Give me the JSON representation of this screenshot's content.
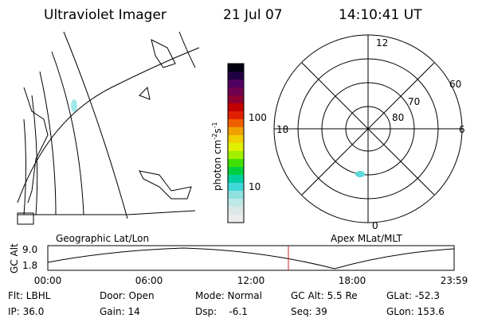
{
  "header": {
    "title": "Ultraviolet Imager",
    "date": "21 Jul 07",
    "time": "14:10:41 UT"
  },
  "map": {
    "label": "Geographic Lat/Lon"
  },
  "colorbar": {
    "unit": [
      "photon cm",
      "-2",
      "s",
      "-1"
    ],
    "ticks": [
      "100",
      "10"
    ]
  },
  "polar": {
    "label": "Apex MLat/MLT",
    "mlt": [
      "12",
      "0",
      "18",
      "6"
    ],
    "mlat": [
      "60",
      "70",
      "80"
    ]
  },
  "timeline": {
    "axis_label": "GC Alt",
    "alt_ticks": [
      "9.0",
      "1.8"
    ],
    "times": [
      "00:00",
      "06:00",
      "12:00",
      "18:00",
      "23:59"
    ]
  },
  "footer": {
    "rows": [
      [
        "Flt: LBHL",
        "Door: Open",
        "Mode: Normal",
        "GC Alt: 5.5 Re",
        "GLat: -52.3"
      ],
      [
        "IP: 36.0",
        "Gain: 14",
        "Dsp:    -6.1",
        "Seq: 39",
        "GLon: 153.6"
      ]
    ]
  }
}
